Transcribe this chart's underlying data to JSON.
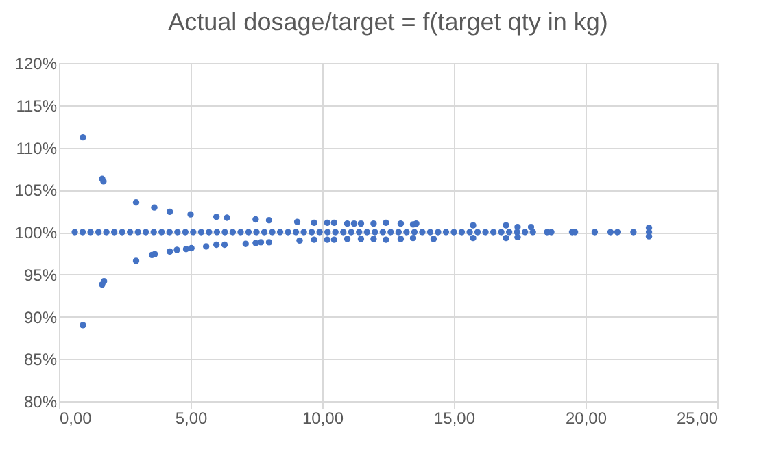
{
  "chart_data": {
    "type": "scatter",
    "title": "Actual dosage/target = f(target qty in kg)",
    "xlim": [
      0,
      25
    ],
    "xticks": [
      {
        "value": 0,
        "label": "0,00"
      },
      {
        "value": 5,
        "label": "5,00"
      },
      {
        "value": 10,
        "label": "10,00"
      },
      {
        "value": 15,
        "label": "15,00"
      },
      {
        "value": 20,
        "label": "20,00"
      },
      {
        "value": 25,
        "label": "25,00"
      }
    ],
    "ylim": [
      80,
      120
    ],
    "yticks": [
      {
        "value": 80,
        "label": "80%"
      },
      {
        "value": 85,
        "label": "85%"
      },
      {
        "value": 90,
        "label": "90%"
      },
      {
        "value": 95,
        "label": "95%"
      },
      {
        "value": 100,
        "label": "100%"
      },
      {
        "value": 105,
        "label": "105%"
      },
      {
        "value": 110,
        "label": "110%"
      },
      {
        "value": 115,
        "label": "115%"
      },
      {
        "value": 120,
        "label": "120%"
      }
    ],
    "grid": true,
    "marker": "circle",
    "series": [
      {
        "color": "#4472c4",
        "x": [
          0.6,
          0.9,
          1.2,
          1.5,
          1.8,
          2.1,
          2.4,
          2.7,
          3.0,
          3.3,
          3.6,
          3.9,
          4.2,
          4.5,
          4.8,
          5.1,
          5.4,
          5.7,
          6.0,
          6.3,
          6.6,
          6.9,
          7.2,
          7.5,
          7.8,
          8.1,
          8.4,
          8.7,
          9.0,
          9.3,
          9.6,
          9.9,
          10.2,
          10.5,
          10.8,
          11.1,
          11.4,
          11.7,
          12.0,
          12.3,
          12.6,
          12.9,
          13.2,
          13.5,
          13.8,
          14.1,
          14.4,
          14.7,
          15.0,
          15.3,
          15.6,
          15.9,
          16.2,
          16.5,
          16.8,
          17.1,
          17.4,
          17.7,
          18.0,
          18.54,
          18.7,
          19.49,
          19.6,
          20.35,
          20.95,
          21.21,
          21.82,
          22.41,
          0.91,
          0.91,
          1.64,
          1.69,
          1.64,
          1.71,
          2.93,
          2.93,
          3.62,
          3.53,
          3.64,
          4.21,
          4.21,
          4.48,
          5.0,
          4.83,
          5.03,
          5.59,
          5.98,
          5.98,
          6.38,
          6.29,
          7.09,
          7.47,
          7.47,
          7.67,
          7.98,
          7.98,
          9.05,
          9.14,
          9.69,
          9.69,
          10.19,
          10.19,
          10.45,
          10.45,
          10.95,
          10.95,
          11.21,
          11.47,
          11.47,
          11.95,
          11.95,
          12.42,
          12.42,
          12.98,
          12.98,
          13.45,
          13.45,
          13.57,
          14.23,
          15.73,
          15.73,
          16.98,
          16.98,
          17.42,
          17.42,
          17.93,
          22.41,
          22.41
        ],
        "values": [
          100,
          100,
          100,
          100,
          100,
          100,
          100,
          100,
          100,
          100,
          100,
          100,
          100,
          100,
          100,
          100,
          100,
          100,
          100,
          100,
          100,
          100,
          100,
          100,
          100,
          100,
          100,
          100,
          100,
          100,
          100,
          100,
          100,
          100,
          100,
          100,
          100,
          100,
          100,
          100,
          100,
          100,
          100,
          100,
          100,
          100,
          100,
          100,
          100,
          100,
          100,
          100,
          100,
          100,
          100,
          100,
          100,
          100,
          100,
          100,
          100,
          100,
          100,
          100,
          100,
          100,
          100,
          100,
          111.2,
          89.0,
          106.3,
          106.0,
          93.8,
          94.2,
          103.5,
          96.6,
          102.9,
          97.3,
          97.4,
          102.4,
          97.7,
          97.9,
          102.1,
          98.0,
          98.1,
          98.3,
          101.8,
          98.5,
          101.7,
          98.5,
          98.6,
          101.5,
          98.7,
          98.8,
          101.4,
          98.8,
          101.2,
          99.0,
          101.1,
          99.1,
          101.1,
          99.1,
          101.1,
          99.1,
          101.0,
          99.2,
          101.0,
          101.0,
          99.2,
          101.0,
          99.2,
          101.1,
          99.1,
          101.0,
          99.2,
          100.9,
          99.3,
          101.0,
          99.2,
          100.8,
          99.3,
          100.8,
          99.3,
          100.6,
          99.4,
          100.6,
          100.5,
          99.5
        ]
      }
    ]
  }
}
